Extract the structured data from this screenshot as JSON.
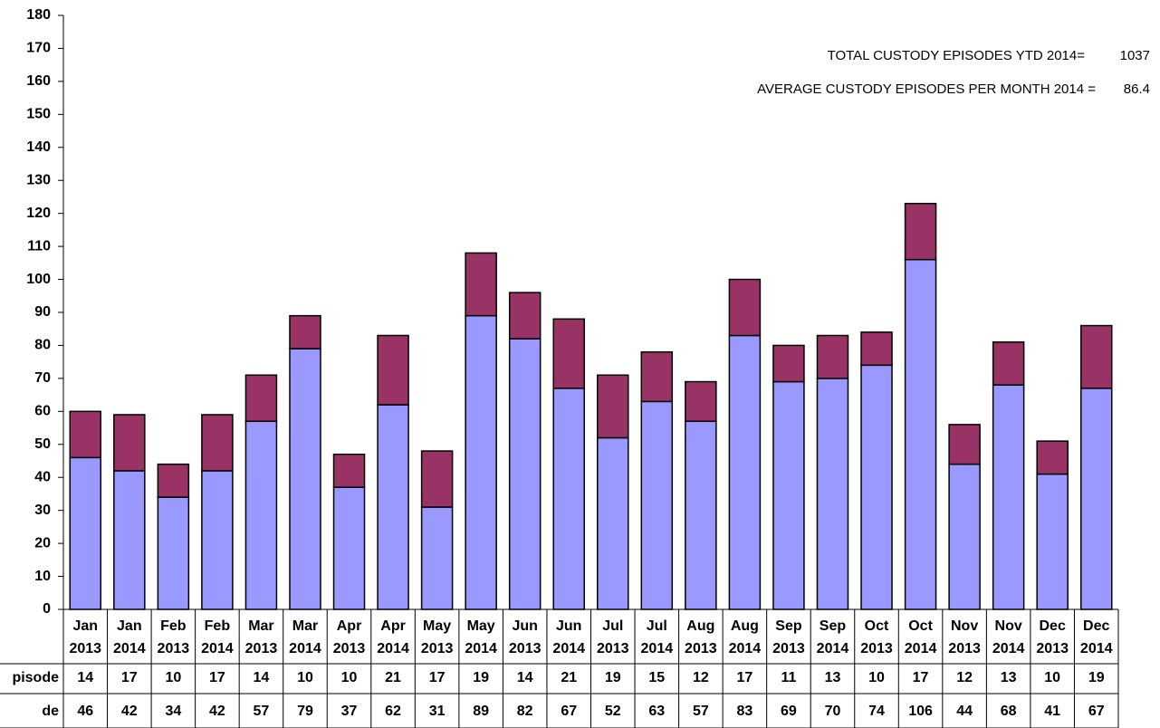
{
  "chart_data": {
    "type": "stacked_bar",
    "categories": [
      [
        "Jan",
        "2013"
      ],
      [
        "Jan",
        "2014"
      ],
      [
        "Feb",
        "2013"
      ],
      [
        "Feb",
        "2014"
      ],
      [
        "Mar",
        "2013"
      ],
      [
        "Mar",
        "2014"
      ],
      [
        "Apr",
        "2013"
      ],
      [
        "Apr",
        "2014"
      ],
      [
        "May",
        "2013"
      ],
      [
        "May",
        "2014"
      ],
      [
        "Jun",
        "2013"
      ],
      [
        "Jun",
        "2014"
      ],
      [
        "Jul",
        "2013"
      ],
      [
        "Jul",
        "2014"
      ],
      [
        "Aug",
        "2013"
      ],
      [
        "Aug",
        "2014"
      ],
      [
        "Sep",
        "2013"
      ],
      [
        "Sep",
        "2014"
      ],
      [
        "Oct",
        "2013"
      ],
      [
        "Oct",
        "2014"
      ],
      [
        "Nov",
        "2013"
      ],
      [
        "Nov",
        "2014"
      ],
      [
        "Dec",
        "2013"
      ],
      [
        "Dec",
        "2014"
      ]
    ],
    "series": [
      {
        "name": "de",
        "color": "#9999ff",
        "values": [
          46,
          42,
          34,
          42,
          57,
          79,
          37,
          62,
          31,
          89,
          82,
          67,
          52,
          63,
          57,
          83,
          69,
          70,
          74,
          106,
          44,
          68,
          41,
          67
        ]
      },
      {
        "name": "pisode",
        "color": "#993366",
        "values": [
          14,
          17,
          10,
          17,
          14,
          10,
          10,
          21,
          17,
          19,
          14,
          21,
          19,
          15,
          12,
          17,
          11,
          13,
          10,
          17,
          12,
          13,
          10,
          19
        ]
      }
    ],
    "ylim": [
      0,
      180
    ],
    "yticks": [
      0,
      10,
      20,
      30,
      40,
      50,
      60,
      70,
      80,
      90,
      100,
      110,
      120,
      130,
      140,
      150,
      160,
      170,
      180
    ],
    "annotations": [
      {
        "label": "TOTAL CUSTODY EPISODES YTD 2014=",
        "value": "1037"
      },
      {
        "label": "AVERAGE CUSTODY EPISODES PER MONTH 2014 =",
        "value": "86.4"
      }
    ]
  }
}
